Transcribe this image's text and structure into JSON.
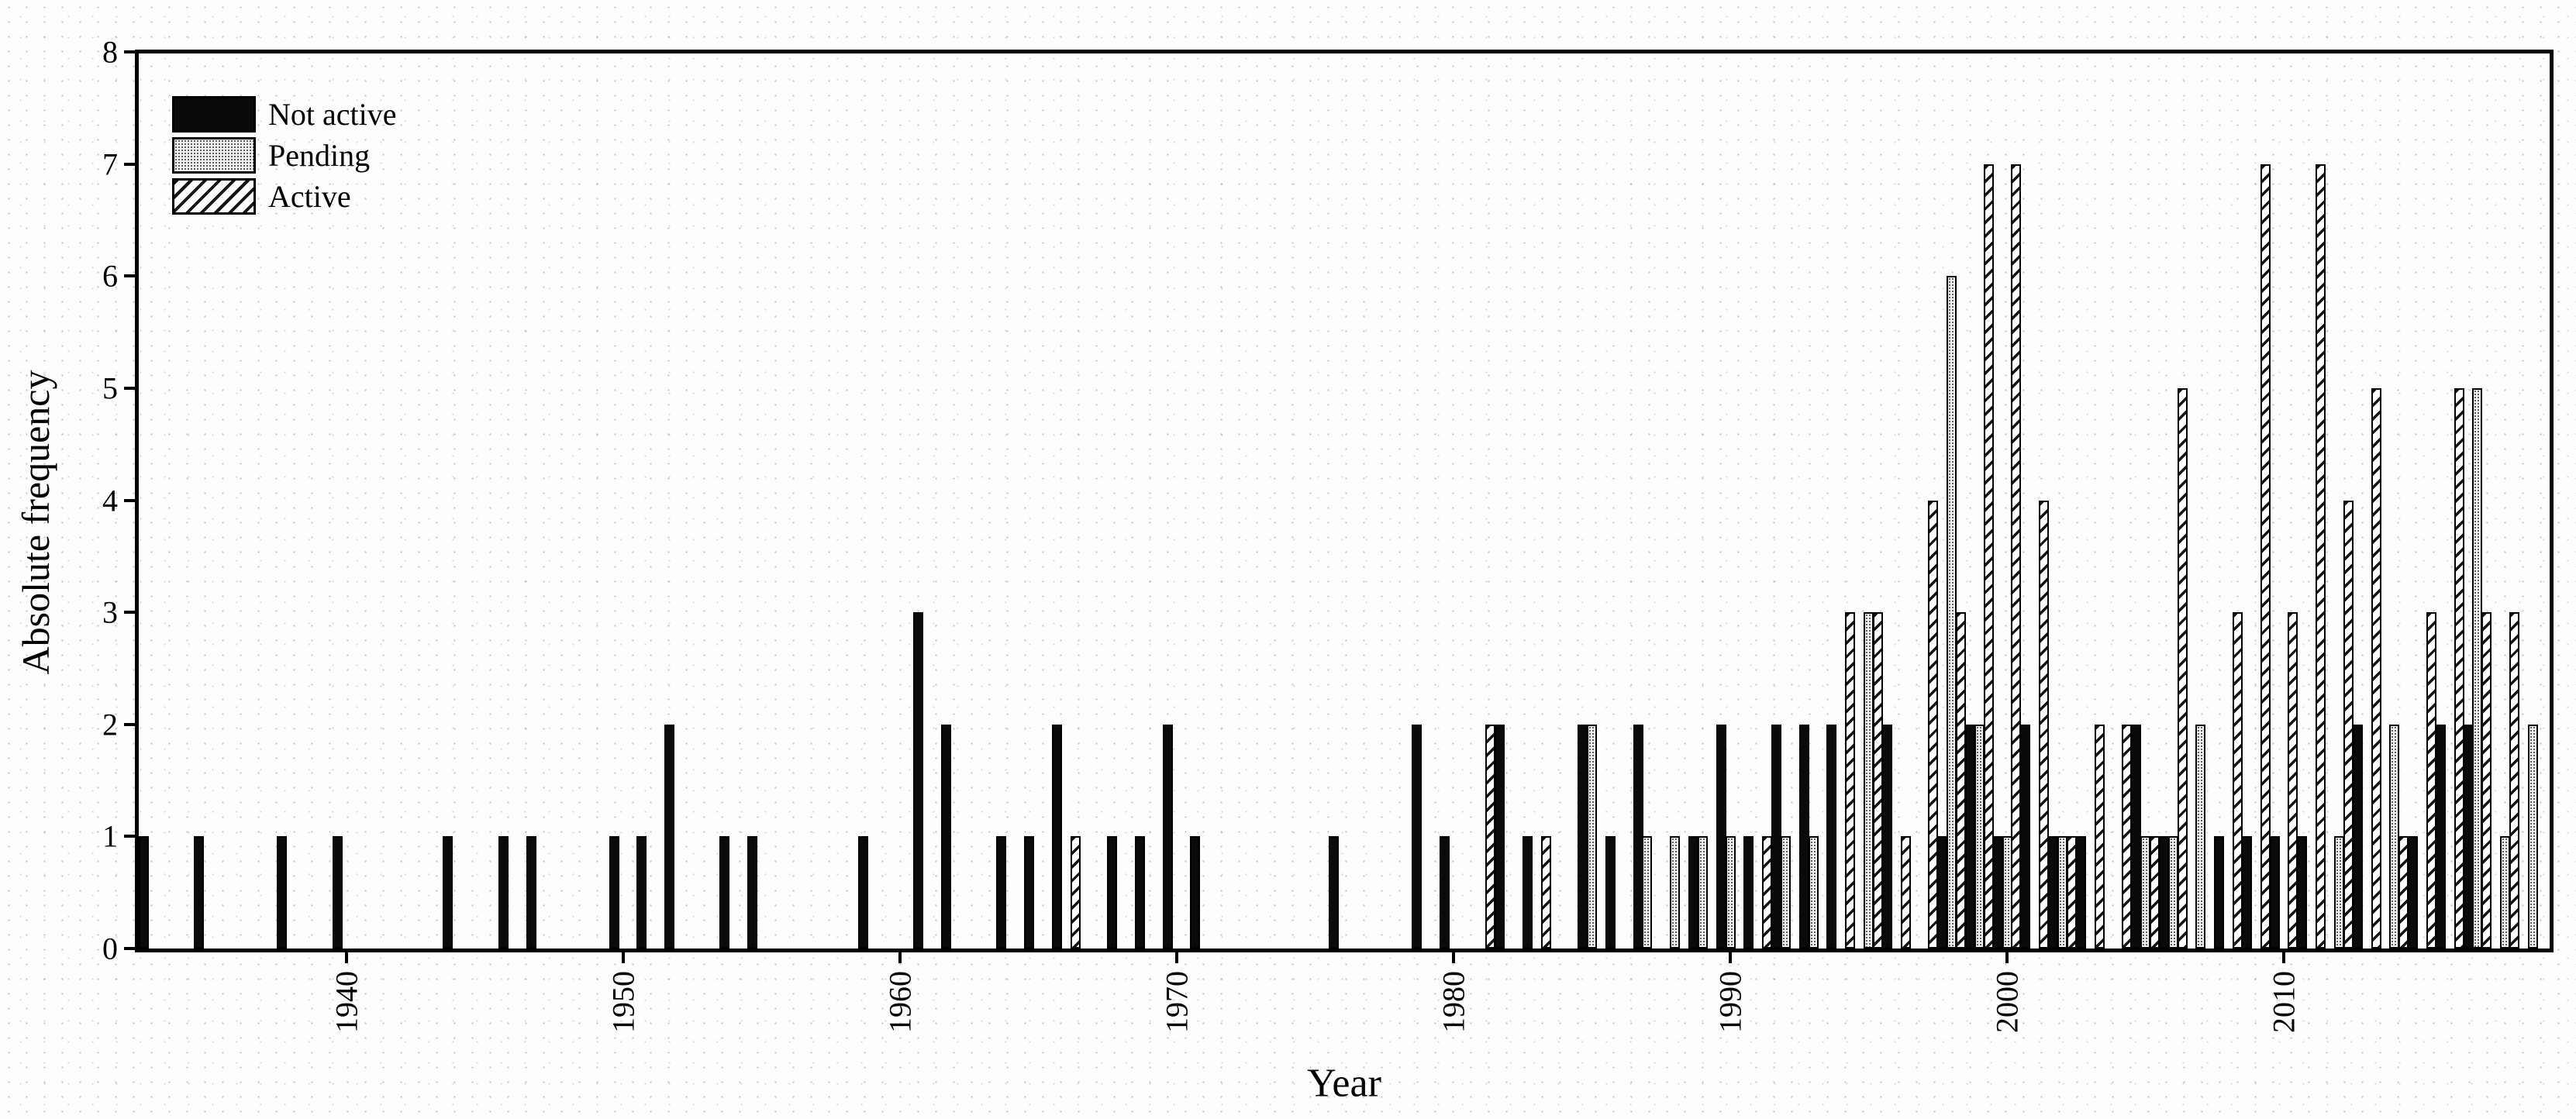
{
  "chart_data": {
    "type": "bar",
    "title": "",
    "xlabel": "Year",
    "ylabel": "Absolute frequency",
    "ylim": [
      0,
      8
    ],
    "yticks": [
      0,
      1,
      2,
      3,
      4,
      5,
      6,
      7,
      8
    ],
    "xticks": [
      1940,
      1950,
      1960,
      1970,
      1980,
      1990,
      2000,
      2010
    ],
    "x_range": [
      1932,
      2019.6
    ],
    "grid": false,
    "legend_position": "top-left",
    "bar_layout": "grouped-per-year",
    "series": [
      {
        "name": "Not active",
        "pattern": "solid",
        "color": "#0a0a0a",
        "data": [
          [
            1933,
            1
          ],
          [
            1935,
            1
          ],
          [
            1938,
            1
          ],
          [
            1940,
            1
          ],
          [
            1944,
            1
          ],
          [
            1946,
            1
          ],
          [
            1947,
            1
          ],
          [
            1950,
            1
          ],
          [
            1951,
            1
          ],
          [
            1952,
            2
          ],
          [
            1954,
            1
          ],
          [
            1955,
            1
          ],
          [
            1959,
            1
          ],
          [
            1961,
            3
          ],
          [
            1962,
            2
          ],
          [
            1964,
            1
          ],
          [
            1965,
            1
          ],
          [
            1966,
            2
          ],
          [
            1968,
            1
          ],
          [
            1969,
            1
          ],
          [
            1970,
            2
          ],
          [
            1971,
            1
          ],
          [
            1976,
            1
          ],
          [
            1979,
            2
          ],
          [
            1980,
            1
          ],
          [
            1982,
            2
          ],
          [
            1983,
            1
          ],
          [
            1985,
            2
          ],
          [
            1986,
            1
          ],
          [
            1987,
            2
          ],
          [
            1989,
            1
          ],
          [
            1990,
            2
          ],
          [
            1991,
            1
          ],
          [
            1992,
            2
          ],
          [
            1993,
            2
          ],
          [
            1994,
            2
          ],
          [
            1996,
            2
          ],
          [
            1998,
            1
          ],
          [
            1999,
            2
          ],
          [
            2000,
            1
          ],
          [
            2001,
            2
          ],
          [
            2002,
            1
          ],
          [
            2003,
            1
          ],
          [
            2005,
            2
          ],
          [
            2006,
            1
          ],
          [
            2008,
            1
          ],
          [
            2009,
            1
          ],
          [
            2010,
            1
          ],
          [
            2011,
            1
          ],
          [
            2013,
            2
          ],
          [
            2015,
            1
          ],
          [
            2016,
            2
          ],
          [
            2017,
            2
          ]
        ]
      },
      {
        "name": "Pending",
        "pattern": "dots",
        "color": "#efefef",
        "dot_color": "#2e2e2e",
        "data": [
          [
            1985,
            2
          ],
          [
            1987,
            1
          ],
          [
            1988,
            1
          ],
          [
            1989,
            1
          ],
          [
            1990,
            1
          ],
          [
            1992,
            1
          ],
          [
            1993,
            1
          ],
          [
            1995,
            3
          ],
          [
            1998,
            6
          ],
          [
            1999,
            2
          ],
          [
            2000,
            1
          ],
          [
            2002,
            1
          ],
          [
            2005,
            1
          ],
          [
            2006,
            1
          ],
          [
            2007,
            2
          ],
          [
            2012,
            1
          ],
          [
            2014,
            2
          ],
          [
            2017,
            5
          ],
          [
            2018,
            1
          ],
          [
            2019,
            2
          ]
        ]
      },
      {
        "name": "Active",
        "pattern": "diagonal-hatch",
        "color": "#ffffff",
        "hatch_color": "#141414",
        "data": [
          [
            1966,
            1
          ],
          [
            1981,
            2
          ],
          [
            1983,
            1
          ],
          [
            1991,
            1
          ],
          [
            1994,
            3
          ],
          [
            1995,
            3
          ],
          [
            1996,
            1
          ],
          [
            1997,
            4
          ],
          [
            1998,
            3
          ],
          [
            1999,
            7
          ],
          [
            2000,
            7
          ],
          [
            2001,
            4
          ],
          [
            2002,
            1
          ],
          [
            2003,
            2
          ],
          [
            2004,
            2
          ],
          [
            2005,
            1
          ],
          [
            2006,
            5
          ],
          [
            2008,
            3
          ],
          [
            2009,
            7
          ],
          [
            2010,
            3
          ],
          [
            2011,
            7
          ],
          [
            2012,
            4
          ],
          [
            2013,
            5
          ],
          [
            2014,
            1
          ],
          [
            2015,
            3
          ],
          [
            2016,
            5
          ],
          [
            2017,
            3
          ],
          [
            2018,
            3
          ]
        ]
      }
    ],
    "axis_color": "#000000"
  }
}
